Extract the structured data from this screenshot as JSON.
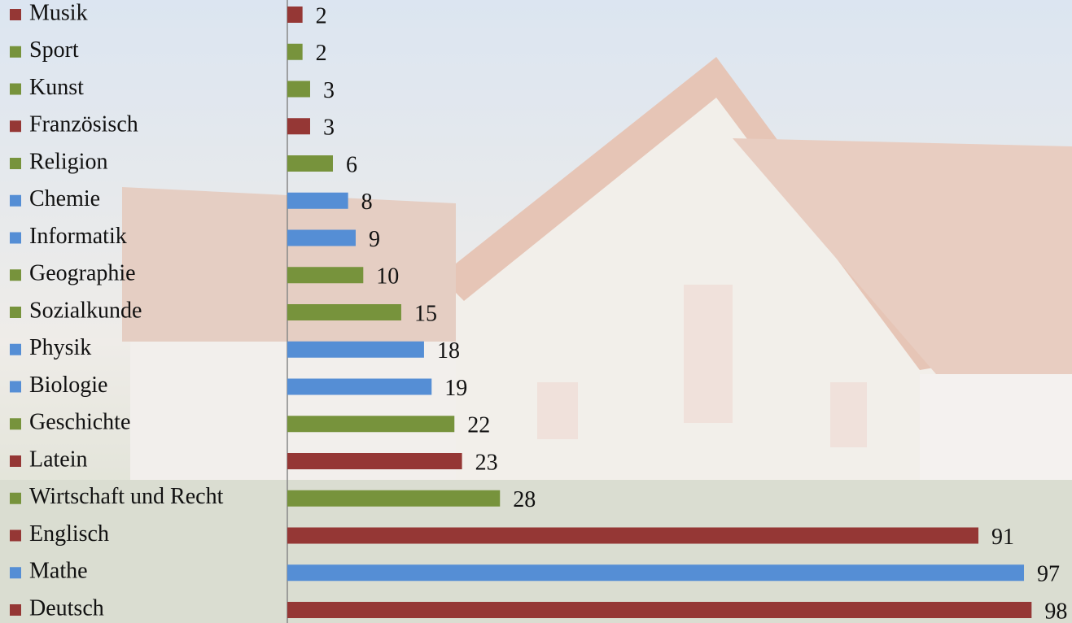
{
  "chart_data": {
    "type": "bar",
    "orientation": "horizontal",
    "categories": [
      "Musik",
      "Sport",
      "Kunst",
      "Französisch",
      "Religion",
      "Chemie",
      "Informatik",
      "Geographie",
      "Sozialkunde",
      "Physik",
      "Biologie",
      "Geschichte",
      "Latein",
      "Wirtschaft und Recht",
      "Englisch",
      "Mathe",
      "Deutsch"
    ],
    "values": [
      2,
      2,
      3,
      3,
      6,
      8,
      9,
      10,
      15,
      18,
      19,
      22,
      23,
      28,
      91,
      97,
      98
    ],
    "colors": [
      "#953735",
      "#77933c",
      "#77933c",
      "#953735",
      "#77933c",
      "#558ed5",
      "#558ed5",
      "#77933c",
      "#77933c",
      "#558ed5",
      "#558ed5",
      "#77933c",
      "#953735",
      "#77933c",
      "#953735",
      "#558ed5",
      "#953735"
    ],
    "xlim": [
      0,
      100
    ],
    "grid": false,
    "data_labels": true
  }
}
